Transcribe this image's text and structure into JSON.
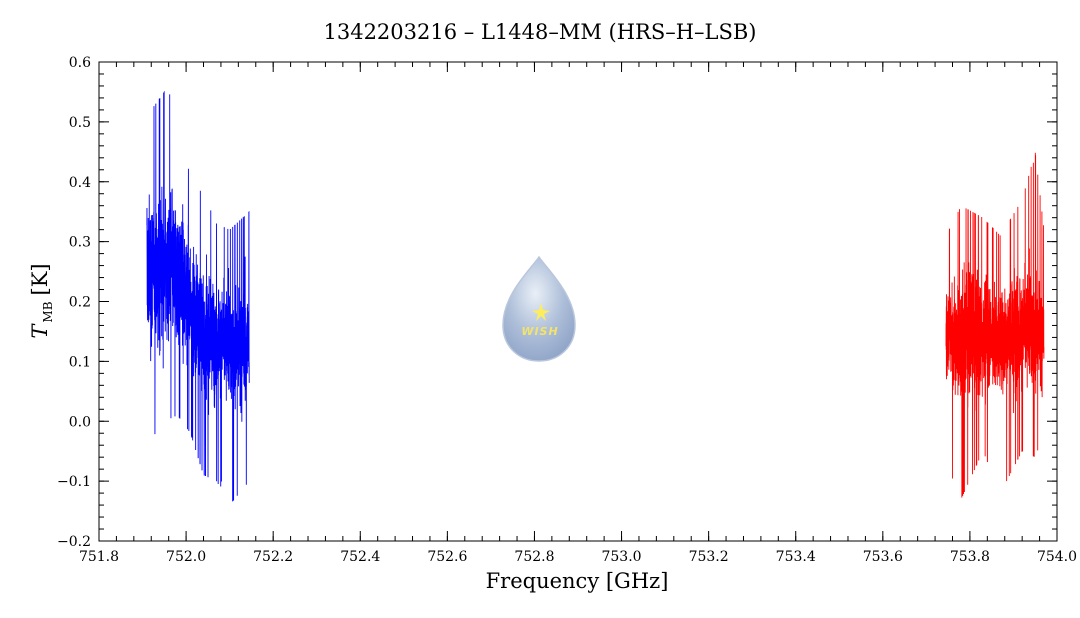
{
  "chart_data": {
    "type": "line",
    "title": "1342203216 – L1448–MM (HRS–H–LSB)",
    "xlabel": "Frequency [GHz]",
    "ylabel_main": "T",
    "ylabel_sub": "MB",
    "ylabel_unit": "[K]",
    "xlim": [
      751.8,
      754.0
    ],
    "ylim": [
      -0.2,
      0.6
    ],
    "x_ticks": [
      "751.8",
      "752.0",
      "752.2",
      "752.4",
      "752.6",
      "752.8",
      "753.0",
      "753.2",
      "753.4",
      "753.6",
      "753.8",
      "754.0"
    ],
    "y_ticks": [
      "−0.2",
      "−0.1",
      "0.0",
      "0.1",
      "0.2",
      "0.3",
      "0.4",
      "0.5",
      "0.6"
    ],
    "series": [
      {
        "color": "#0000ff",
        "x_range": [
          751.91,
          752.145
        ],
        "envelope": [
          {
            "x": 751.91,
            "mean": 0.25,
            "min": -0.04,
            "max": 0.51
          },
          {
            "x": 751.95,
            "mean": 0.26,
            "min": 0.0,
            "max": 0.55
          },
          {
            "x": 751.98,
            "mean": 0.25,
            "min": 0.01,
            "max": 0.54
          },
          {
            "x": 752.01,
            "mean": 0.2,
            "min": -0.02,
            "max": 0.4
          },
          {
            "x": 752.04,
            "mean": 0.14,
            "min": -0.09,
            "max": 0.38
          },
          {
            "x": 752.07,
            "mean": 0.14,
            "min": -0.1,
            "max": 0.33
          },
          {
            "x": 752.1,
            "mean": 0.12,
            "min": -0.14,
            "max": 0.32
          },
          {
            "x": 752.145,
            "mean": 0.13,
            "min": -0.1,
            "max": 0.35
          }
        ]
      },
      {
        "color": "#ff0000",
        "x_range": [
          753.745,
          753.97
        ],
        "envelope": [
          {
            "x": 753.745,
            "mean": 0.15,
            "min": -0.07,
            "max": 0.31
          },
          {
            "x": 753.78,
            "mean": 0.14,
            "min": -0.13,
            "max": 0.36
          },
          {
            "x": 753.83,
            "mean": 0.14,
            "min": -0.05,
            "max": 0.34
          },
          {
            "x": 753.87,
            "mean": 0.14,
            "min": -0.12,
            "max": 0.31
          },
          {
            "x": 753.92,
            "mean": 0.15,
            "min": -0.05,
            "max": 0.37
          },
          {
            "x": 753.95,
            "mean": 0.15,
            "min": -0.06,
            "max": 0.45
          },
          {
            "x": 753.97,
            "mean": 0.14,
            "min": -0.02,
            "max": 0.32
          }
        ]
      }
    ],
    "grid": false
  },
  "logo": {
    "text": "WISH",
    "icon": "water-drop-star-icon"
  }
}
